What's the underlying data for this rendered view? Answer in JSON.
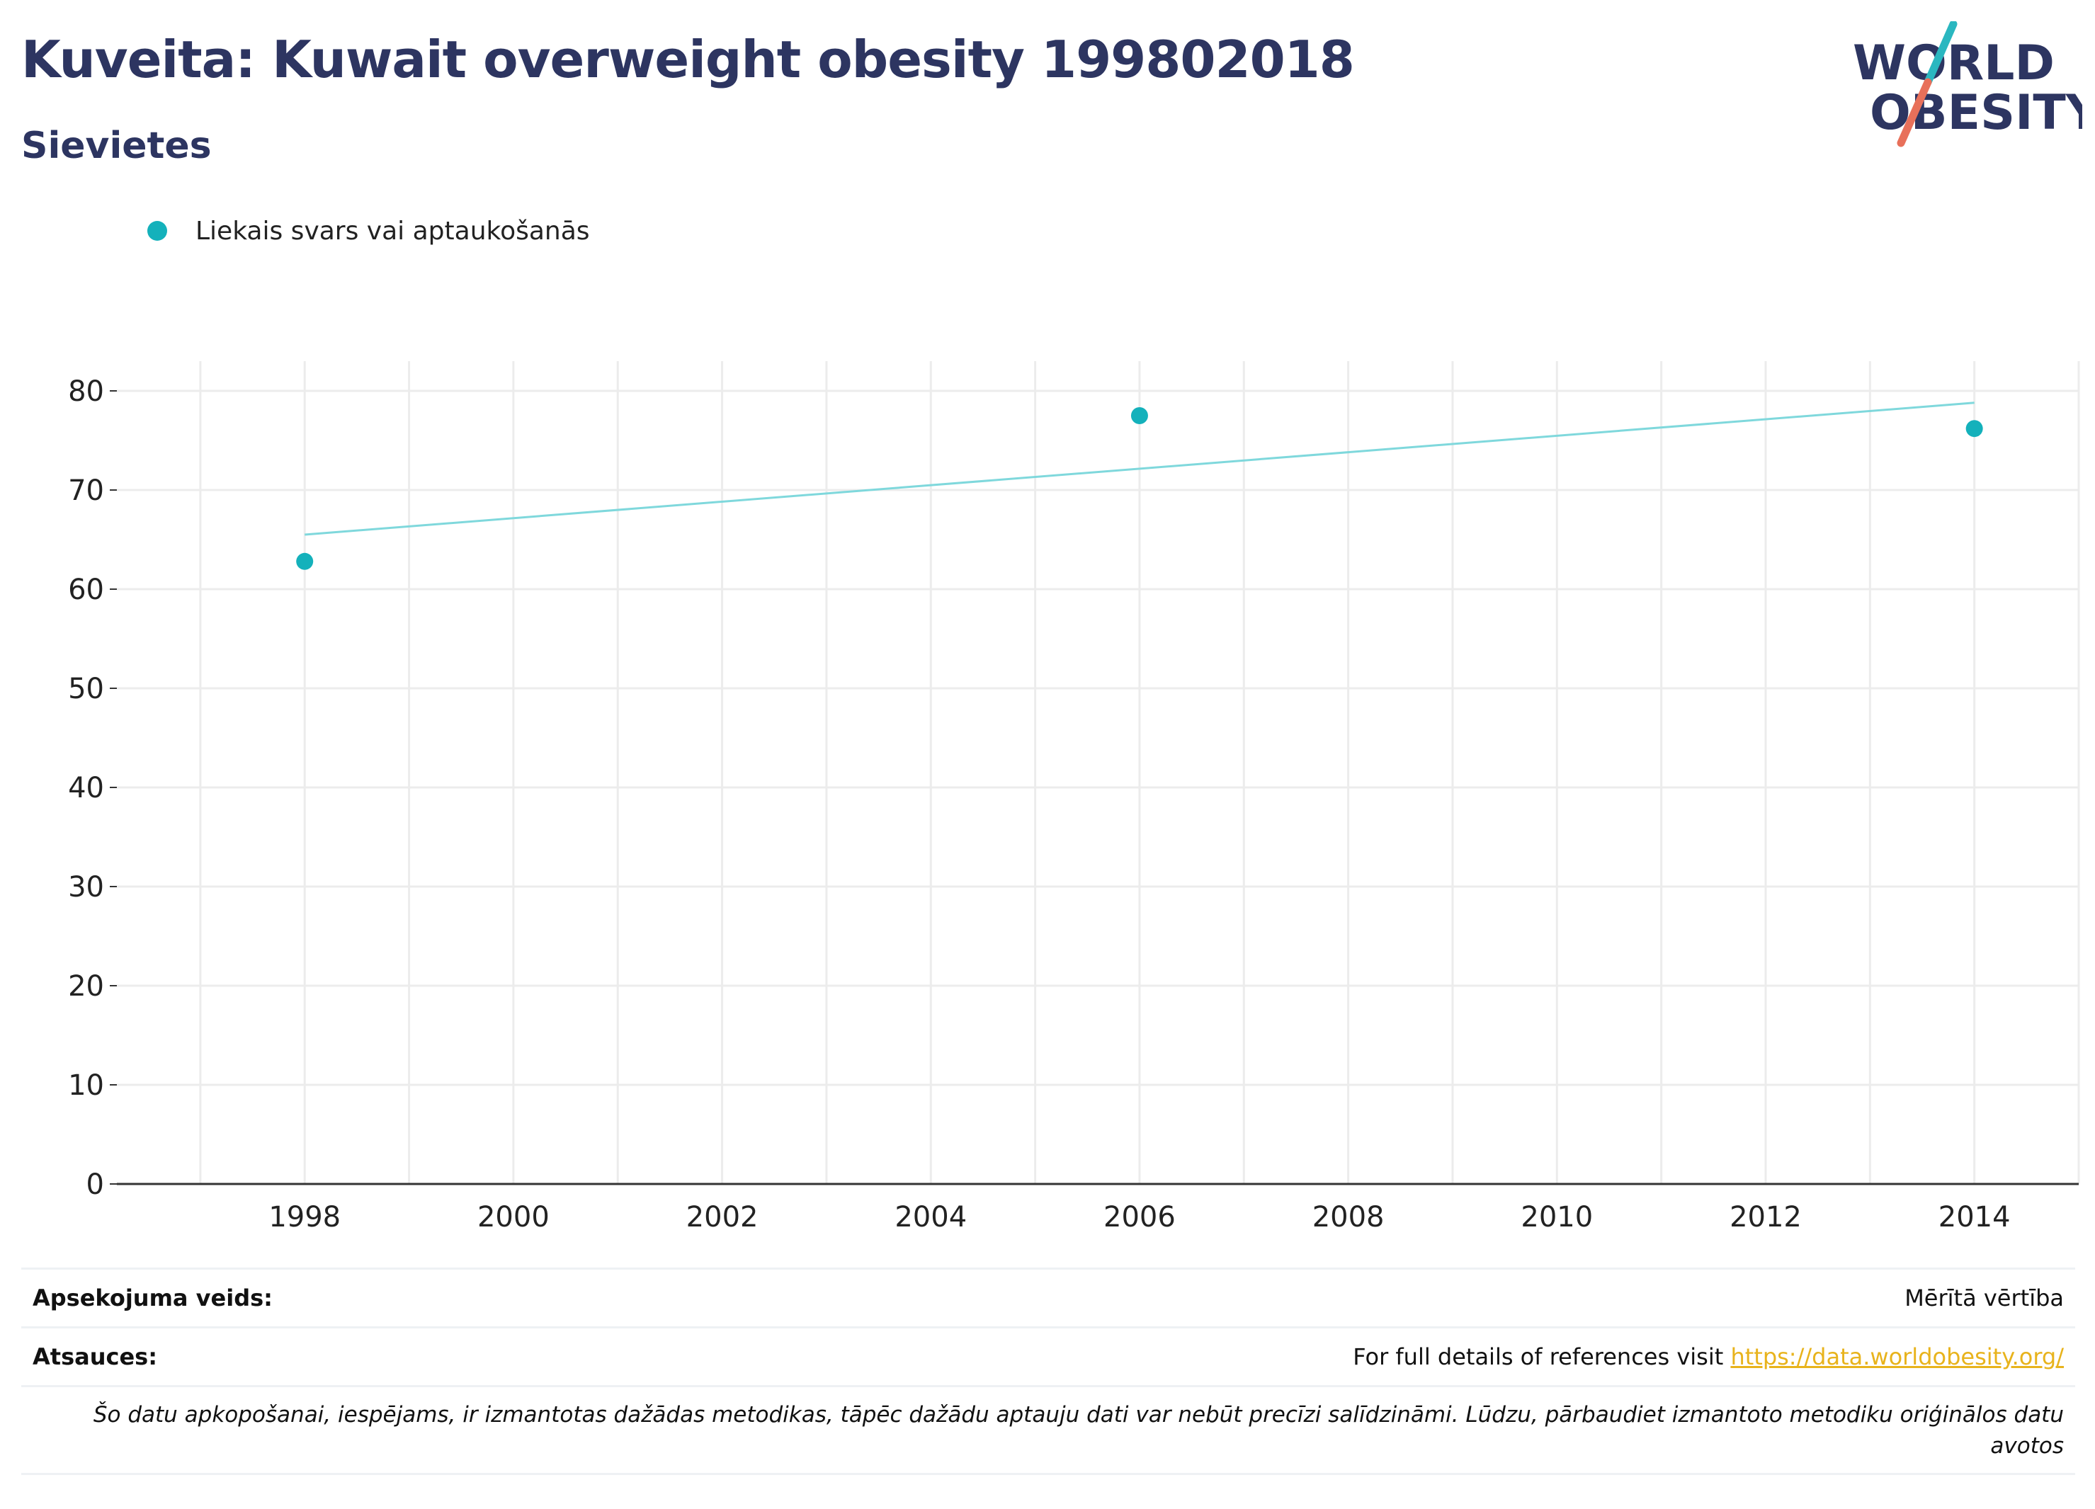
{
  "header": {
    "title": "Kuveita: Kuwait overweight obesity 199802018",
    "subtitle": "Sievietes"
  },
  "logo": {
    "line1": "WORLD",
    "line2": "OBESITY",
    "colors": {
      "text": "#2d3561",
      "slash_top": "#2ab7c0",
      "slash_bottom": "#e8705a"
    }
  },
  "legend": {
    "items": [
      {
        "label": "Liekais svars vai aptaukošanās",
        "color": "#14b1bb"
      }
    ]
  },
  "chart_data": {
    "type": "scatter",
    "title": "",
    "xlabel": "",
    "ylabel": "",
    "xlim": [
      1996.2,
      2015.0
    ],
    "ylim": [
      0,
      83
    ],
    "x_ticks": [
      1998,
      2000,
      2002,
      2004,
      2006,
      2008,
      2010,
      2012,
      2014
    ],
    "y_ticks": [
      0,
      10,
      20,
      30,
      40,
      50,
      60,
      70,
      80
    ],
    "grid": true,
    "legend_position": "top-left",
    "series": [
      {
        "name": "Liekais svars vai aptaukošanās",
        "color": "#14b1bb",
        "points": [
          {
            "x": 1998,
            "y": 62.8
          },
          {
            "x": 2006,
            "y": 77.5
          },
          {
            "x": 2014,
            "y": 76.2
          }
        ]
      }
    ],
    "trendline": {
      "color": "#7fd8dc",
      "points": [
        {
          "x": 1998,
          "y": 65.5
        },
        {
          "x": 2014,
          "y": 78.8
        }
      ]
    }
  },
  "info": {
    "survey_type_label": "Apsekojuma veids:",
    "survey_type_value": "Mērītā vērtība",
    "references_label": "Atsauces:",
    "references_text": "For full details of references visit",
    "references_link": "https://data.worldobesity.org/",
    "disclaimer": "Šo datu apkopošanai, iespējams, ir izmantotas dažādas metodikas, tāpēc dažādu aptauju dati var nebūt precīzi salīdzināmi. Lūdzu, pārbaudiet izmantoto metodiku oriģinālos datu avotos"
  }
}
